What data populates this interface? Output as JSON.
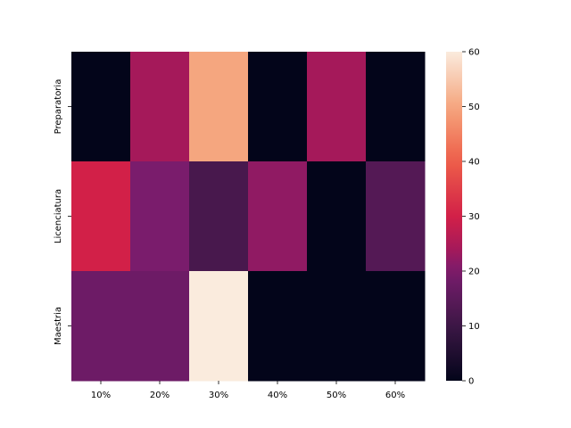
{
  "chart_data": {
    "type": "heatmap",
    "title": "",
    "xlabel": "",
    "ylabel": "",
    "x_categories": [
      "10%",
      "20%",
      "30%",
      "40%",
      "50%",
      "60%"
    ],
    "y_categories": [
      "Preparatoria",
      "Licenciatura",
      "Maestria"
    ],
    "values": [
      [
        0,
        24,
        50,
        0,
        24,
        0
      ],
      [
        30,
        20,
        12,
        22,
        0,
        14
      ],
      [
        18,
        18,
        60,
        0,
        0,
        0
      ]
    ],
    "colorbar": {
      "min": 0,
      "max": 60,
      "ticks": [
        "0",
        "10",
        "20",
        "30",
        "40",
        "50",
        "60"
      ],
      "colormap": "rocket"
    }
  }
}
